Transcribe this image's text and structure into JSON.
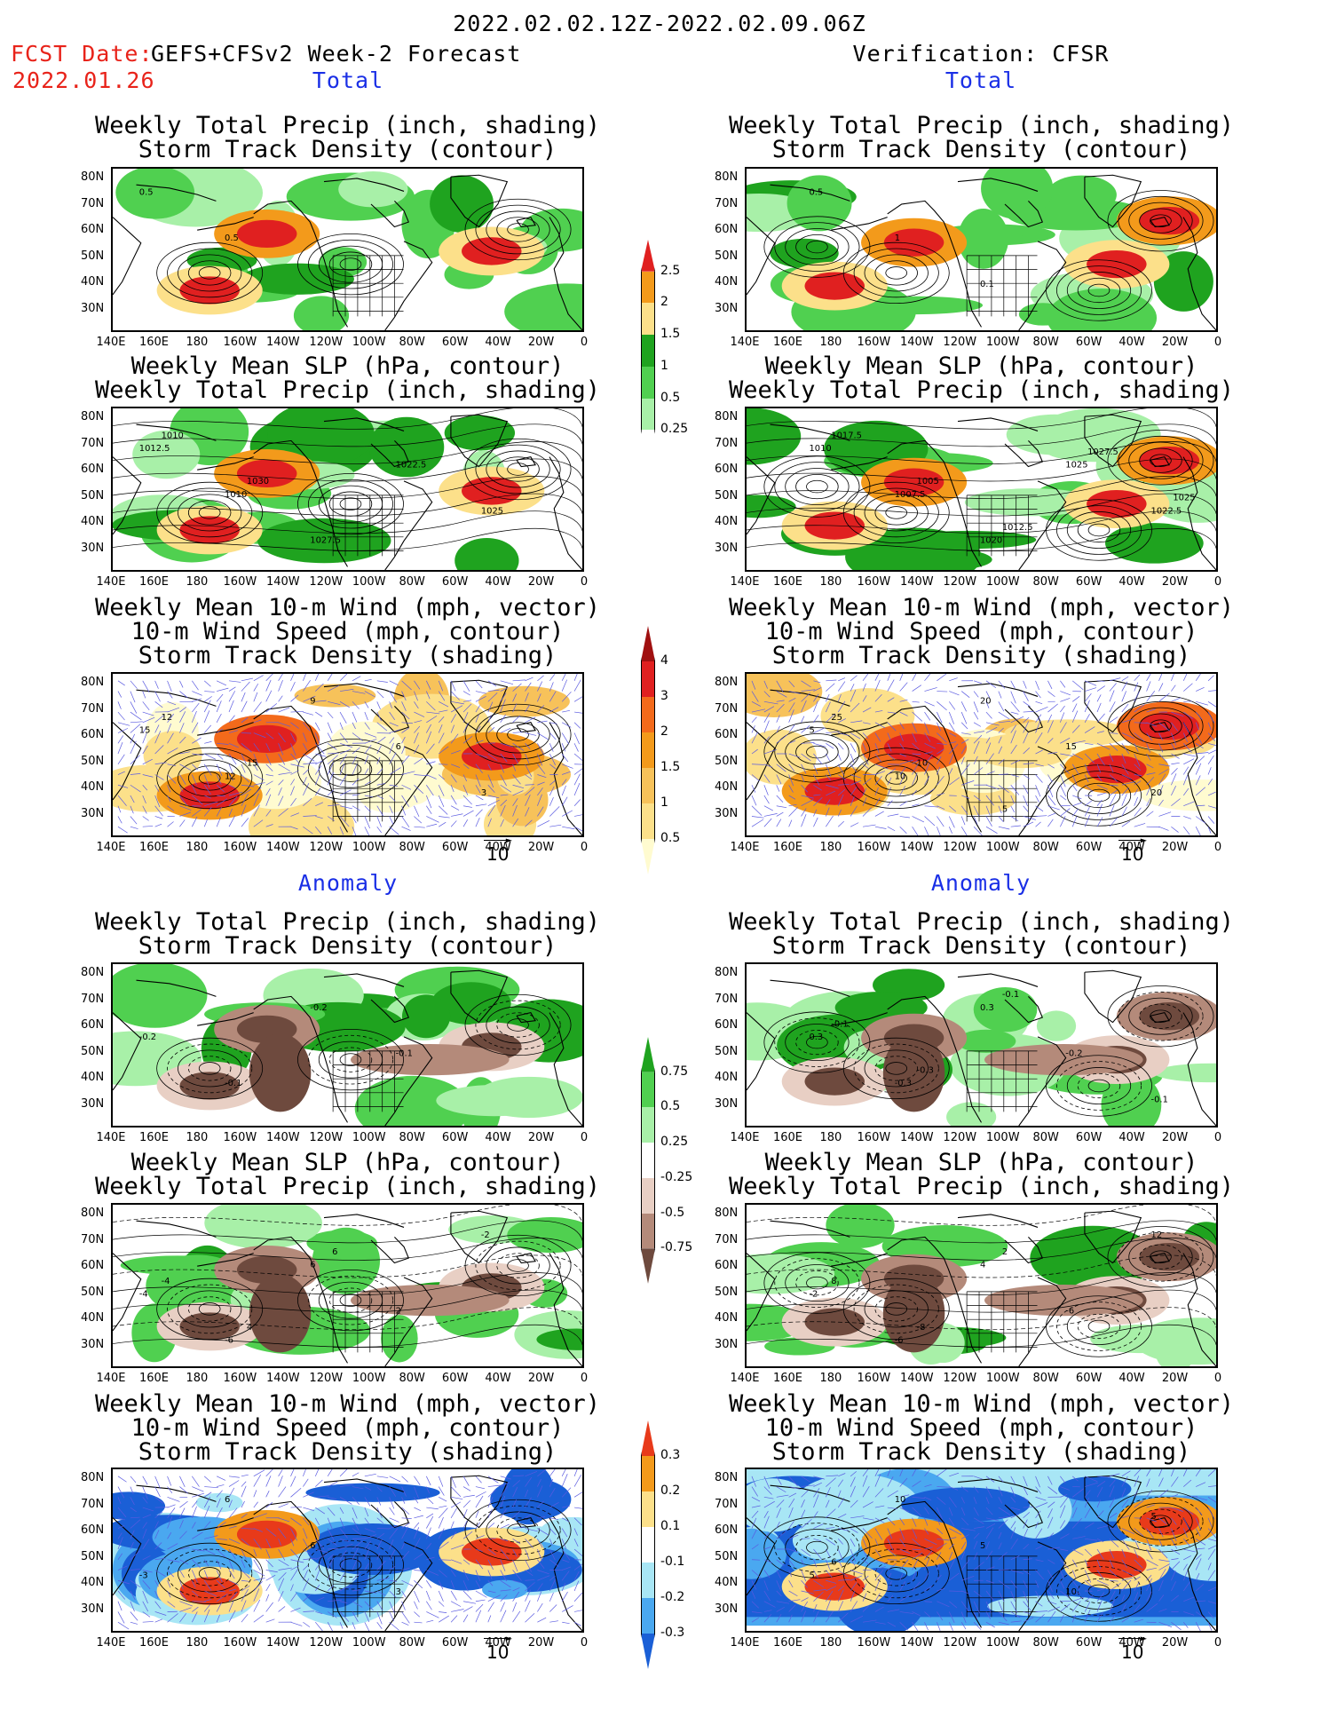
{
  "header": {
    "date_range": "2022.02.02.12Z-2022.02.09.06Z",
    "fcst_label": "FCST Date:",
    "fcst_model": "GEFS+CFSv2 Week-2 Forecast",
    "fcst_date": "2022.01.26",
    "verification": "Verification: CFSR"
  },
  "sections": {
    "total": "Total",
    "anomaly": "Anomaly"
  },
  "panel_titles": {
    "precip_track": [
      "Weekly Total Precip (inch, shading)",
      "Storm Track Density (contour)"
    ],
    "slp_precip": [
      "Weekly Mean SLP (hPa, contour)",
      "Weekly Total Precip (inch, shading)"
    ],
    "wind": [
      "Weekly Mean 10-m Wind (mph, vector)",
      "10-m Wind Speed (mph, contour)",
      "Storm Track Density (shading)"
    ]
  },
  "axes": {
    "lat_labels": [
      "80N",
      "70N",
      "60N",
      "50N",
      "40N",
      "30N"
    ],
    "lon_labels": [
      "140E",
      "160E",
      "180",
      "160W",
      "140W",
      "120W",
      "100W",
      "80W",
      "60W",
      "40W",
      "20W",
      "0"
    ]
  },
  "vector_reference": "10",
  "colorbars": {
    "precip_total": {
      "labels": [
        "2.5",
        "2",
        "1.5",
        "1",
        "0.5",
        "0.25"
      ],
      "colors": [
        "#e02020",
        "#f39a1b",
        "#fce08a",
        "#1fa31f",
        "#50d050",
        "#a8f0a8",
        "#ffffff"
      ]
    },
    "track_total": {
      "labels": [
        "4",
        "3",
        "2",
        "1.5",
        "1",
        "0.5"
      ],
      "colors": [
        "#a01010",
        "#e02020",
        "#f36a1b",
        "#f39a1b",
        "#f7c25a",
        "#fce08a",
        "#fffbd0"
      ]
    },
    "precip_anom": {
      "labels": [
        "0.75",
        "0.5",
        "0.25",
        "-0.25",
        "-0.5",
        "-0.75"
      ],
      "colors": [
        "#1fa31f",
        "#50d050",
        "#a8f0a8",
        "#ffffff",
        "#e8cfc4",
        "#b48a7a",
        "#6e4a3e"
      ]
    },
    "track_anom": {
      "labels": [
        "0.3",
        "0.2",
        "0.1",
        "-0.1",
        "-0.2",
        "-0.3"
      ],
      "colors": [
        "#e83a1a",
        "#f39a1b",
        "#fce08a",
        "#ffffff",
        "#a8e6f5",
        "#4aa8f0",
        "#1a5fd6"
      ]
    }
  },
  "map_annotations": {
    "fcst_total_track": [
      "0.5",
      "0.5"
    ],
    "obs_total_track": [
      "0.5",
      "1",
      "0.1"
    ],
    "fcst_total_slp": [
      "1012.5",
      "1010",
      "1027.5",
      "1022.5",
      "1025",
      "1010",
      "1030"
    ],
    "obs_total_slp": [
      "1010",
      "1007.5",
      "1020",
      "1025",
      "1022.5",
      "1017.5",
      "1005",
      "1012.5",
      "1027.5",
      "1025"
    ],
    "fcst_total_wind": [
      "15",
      "12",
      "9",
      "6",
      "3",
      "12",
      "15"
    ],
    "obs_total_wind": [
      "5",
      "10",
      "20",
      "15",
      "20",
      "25",
      "10",
      "5"
    ],
    "fcst_anom_track": [
      "-0.2",
      "-0.1",
      "-0.2",
      "-0.1"
    ],
    "obs_anom_track": [
      "0.3",
      "-0.3",
      "0.3",
      "-0.2",
      "-0.1",
      "-0.1",
      "-0.3",
      "-0.1"
    ],
    "fcst_anom_slp": [
      "-4",
      "-6",
      "6",
      "2",
      "-2",
      "-4",
      "4",
      "6"
    ],
    "obs_anom_slp": [
      "-2",
      "-6",
      "4",
      "-6",
      "12",
      "8",
      "-8",
      "2"
    ],
    "fcst_anom_wind": [
      "-3",
      "6",
      "6",
      "3"
    ],
    "obs_anom_wind": [
      "5",
      "10",
      "5",
      "10",
      "5",
      "6"
    ]
  },
  "colors": {
    "title_red": "#e8231a",
    "section_blue": "#1a2fe6",
    "vector_blue": "#5a5ae0"
  }
}
